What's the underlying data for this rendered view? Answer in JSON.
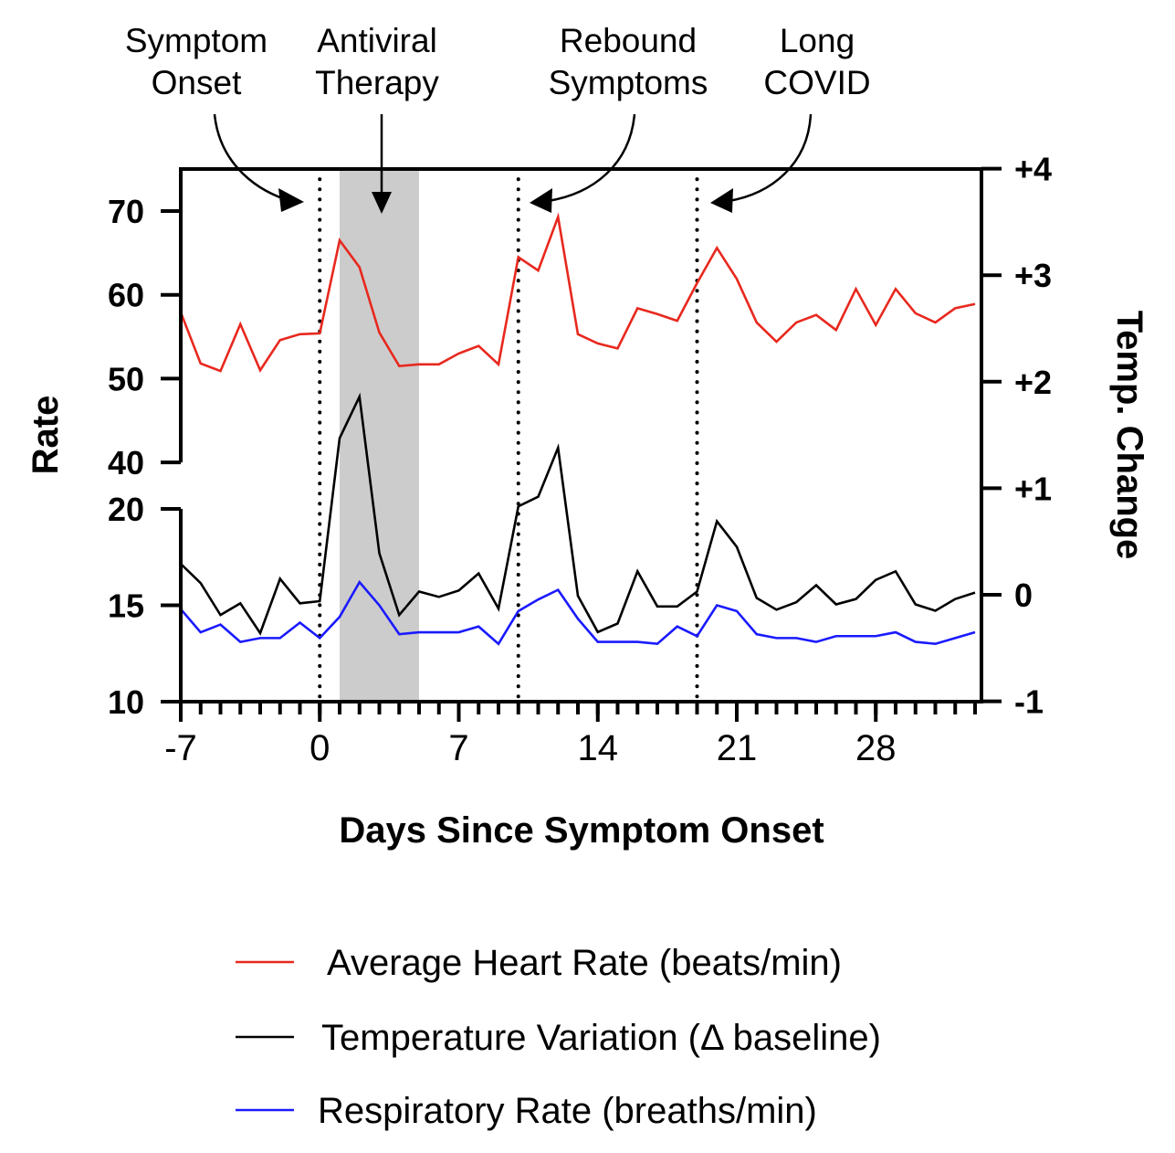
{
  "chart_data": {
    "type": "line",
    "xlabel": "Days Since Symptom Onset",
    "ylabel_left": "Rate",
    "ylabel_right": "Temp. Change",
    "x": [
      -7,
      -6,
      -5,
      -4,
      -3,
      -2,
      -1,
      0,
      1,
      2,
      3,
      4,
      5,
      6,
      7,
      8,
      9,
      10,
      11,
      12,
      13,
      14,
      15,
      16,
      17,
      18,
      19,
      20,
      21,
      22,
      23,
      24,
      25,
      26,
      27,
      28,
      29,
      30,
      31,
      32,
      33
    ],
    "xlim": [
      -7,
      33.4
    ],
    "x_ticks": [
      -7,
      0,
      7,
      14,
      21,
      28
    ],
    "x_tick_labels": [
      "-7",
      "0",
      "7",
      "14",
      "21",
      "28"
    ],
    "left_axis_upper": {
      "ylim": [
        40,
        75
      ],
      "ticks": [
        40,
        50,
        60,
        70
      ],
      "tick_labels": [
        "40",
        "50",
        "60",
        "70"
      ]
    },
    "left_axis_lower": {
      "ylim": [
        10,
        20
      ],
      "ticks": [
        10,
        15,
        20
      ],
      "tick_labels": [
        "10",
        "15",
        "20"
      ]
    },
    "right_axis": {
      "ylim": [
        -1,
        4
      ],
      "ticks": [
        -1,
        0,
        1,
        2,
        3,
        4
      ],
      "tick_labels": [
        "-1",
        "0",
        "+1",
        "+2",
        "+3",
        "+4"
      ]
    },
    "series": [
      {
        "name": "Average Heart Rate (beats/min)",
        "axis": "left_upper",
        "color": "#e8281e",
        "values": [
          57.9,
          51.8,
          50.9,
          56.5,
          51.0,
          54.6,
          55.3,
          55.4,
          66.5,
          63.3,
          55.5,
          51.5,
          51.7,
          51.7,
          53.0,
          53.9,
          51.7,
          64.5,
          62.9,
          69.3,
          55.3,
          54.2,
          53.6,
          58.4,
          57.7,
          56.9,
          61.4,
          65.6,
          61.9,
          56.7,
          54.4,
          56.7,
          57.6,
          55.8,
          60.7,
          56.4,
          60.7,
          57.8,
          56.7,
          58.4,
          58.9
        ]
      },
      {
        "name": "Temperature Variation (Δ baseline)",
        "axis": "right",
        "color": "#000000",
        "values": [
          0.29,
          0.11,
          -0.19,
          -0.08,
          -0.36,
          0.15,
          -0.08,
          -0.06,
          1.47,
          1.86,
          0.39,
          -0.19,
          0.03,
          -0.02,
          0.04,
          0.2,
          -0.13,
          0.83,
          0.92,
          1.38,
          -0.01,
          -0.35,
          -0.27,
          0.22,
          -0.11,
          -0.11,
          0.03,
          0.69,
          0.45,
          -0.03,
          -0.14,
          -0.07,
          0.09,
          -0.09,
          -0.04,
          0.14,
          0.22,
          -0.09,
          -0.15,
          -0.04,
          0.02
        ]
      },
      {
        "name": "Respiratory Rate (breaths/min)",
        "axis": "left_lower",
        "color": "#1a1aff",
        "values": [
          14.8,
          13.6,
          14.0,
          13.1,
          13.3,
          13.3,
          14.1,
          13.3,
          14.4,
          16.2,
          15.0,
          13.5,
          13.6,
          13.6,
          13.6,
          13.9,
          13.0,
          14.7,
          15.3,
          15.8,
          14.3,
          13.1,
          13.1,
          13.1,
          13.0,
          13.9,
          13.4,
          15.0,
          14.7,
          13.5,
          13.3,
          13.3,
          13.1,
          13.4,
          13.4,
          13.4,
          13.6,
          13.1,
          13.0,
          13.3,
          13.6
        ]
      }
    ],
    "shaded_region": {
      "x_range": [
        1,
        5
      ],
      "color": "#cccccc"
    },
    "event_lines": [
      0,
      10,
      19
    ],
    "annotations": [
      {
        "lines": [
          "Symptom",
          "Onset"
        ],
        "target_day": 0
      },
      {
        "lines": [
          "Antiviral",
          "Therapy"
        ],
        "target_day": 3
      },
      {
        "lines": [
          "Rebound",
          "Symptoms"
        ],
        "target_day": 10
      },
      {
        "lines": [
          "Long",
          "COVID"
        ],
        "target_day": 19
      }
    ],
    "legend_position": "bottom",
    "grid": false
  }
}
